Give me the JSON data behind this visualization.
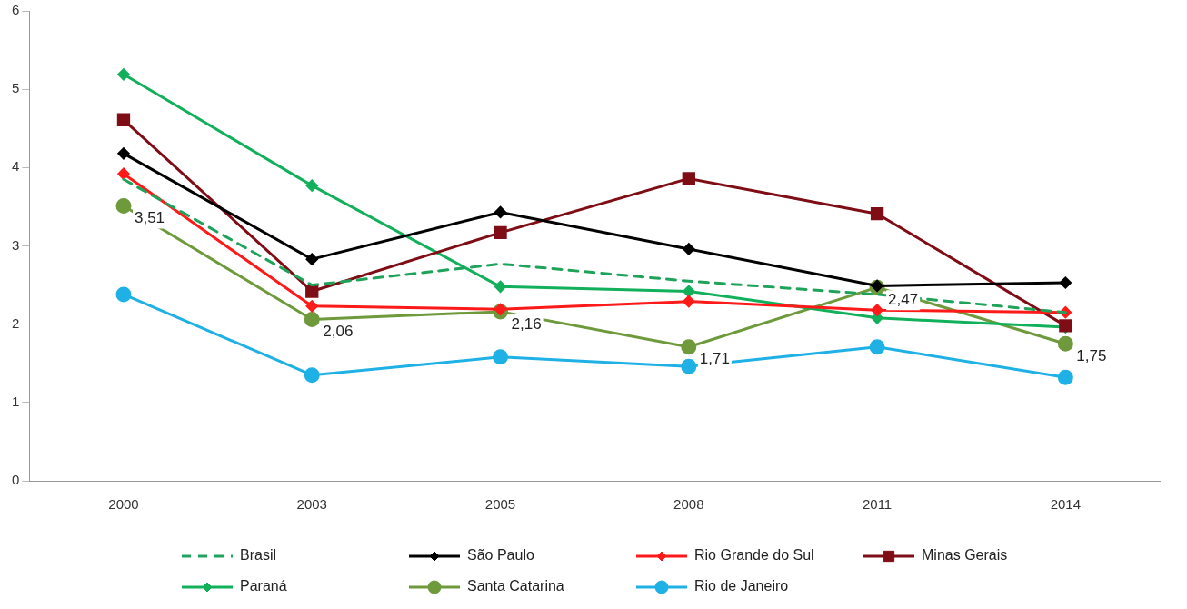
{
  "chart_data": {
    "type": "line",
    "categories": [
      "2000",
      "2003",
      "2005",
      "2008",
      "2011",
      "2014"
    ],
    "ylim": [
      0,
      6
    ],
    "yticks": [
      0,
      1,
      2,
      3,
      4,
      5,
      6
    ],
    "grid": false,
    "legend": "bottom",
    "series": [
      {
        "name": "Brasil",
        "color": "#1fa35a",
        "line_style": "dashed",
        "marker": "none",
        "values": [
          3.85,
          2.5,
          2.77,
          2.55,
          2.38,
          2.15
        ]
      },
      {
        "name": "São Paulo",
        "color": "#000000",
        "marker": "diamond",
        "values": [
          4.18,
          2.83,
          3.43,
          2.96,
          2.49,
          2.53
        ]
      },
      {
        "name": "Rio Grande do Sul",
        "color": "#ff1a1a",
        "marker": "diamond",
        "values": [
          3.92,
          2.23,
          2.19,
          2.29,
          2.18,
          2.15
        ]
      },
      {
        "name": "Minas Gerais",
        "color": "#7f0d16",
        "marker": "square",
        "values": [
          4.61,
          2.42,
          3.17,
          3.86,
          3.41,
          1.98
        ]
      },
      {
        "name": "Paraná",
        "color": "#13b05c",
        "marker": "diamond",
        "values": [
          5.19,
          3.77,
          2.48,
          2.42,
          2.08,
          1.96
        ]
      },
      {
        "name": "Santa Catarina",
        "color": "#6e9a3c",
        "marker": "circle",
        "values": [
          3.51,
          2.06,
          2.16,
          1.71,
          2.47,
          1.75
        ],
        "value_labels": [
          "3,51",
          "2,06",
          "2,16",
          "1,71",
          "2,47",
          "1,75"
        ]
      },
      {
        "name": "Rio de Janeiro",
        "color": "#1fb1e6",
        "marker": "circle",
        "values": [
          2.38,
          1.35,
          1.58,
          1.46,
          1.71,
          1.32
        ]
      }
    ]
  }
}
